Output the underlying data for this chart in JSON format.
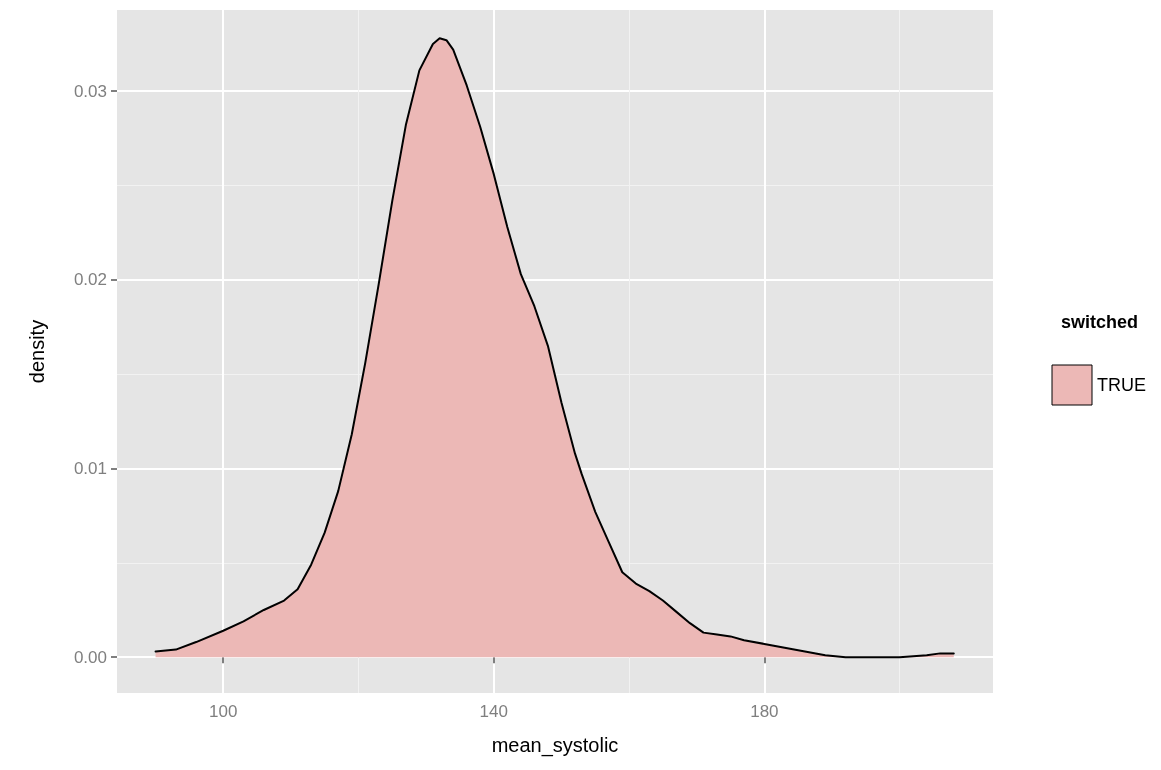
{
  "chart_data": {
    "type": "area",
    "xlabel": "mean_systolic",
    "ylabel": "density",
    "legend_title": "switched",
    "legend": "right",
    "grid": true,
    "marker": "none",
    "line_style": "solid",
    "xlim": [
      84.3,
      213.8
    ],
    "xticks": [
      100,
      140,
      180
    ],
    "ylim": [
      -0.0019,
      0.0343
    ],
    "yticks": [
      {
        "value": 0,
        "label": "0.00"
      },
      {
        "value": 0.01,
        "label": "0.01"
      },
      {
        "value": 0.02,
        "label": "0.02"
      },
      {
        "value": 0.03,
        "label": "0.03"
      }
    ],
    "series": [
      {
        "name": "TRUE",
        "color": "#ecb8b6",
        "x": [
          90,
          93,
          96,
          100,
          103,
          106,
          109,
          111,
          113,
          115,
          117,
          119,
          121,
          123,
          125,
          127,
          129,
          131,
          132,
          133,
          134,
          136,
          138,
          140,
          142,
          144,
          146,
          148,
          150,
          152,
          153,
          155,
          157,
          159,
          161,
          163,
          165,
          167,
          169,
          171,
          173,
          175,
          177,
          180,
          183,
          186,
          189,
          192,
          196,
          200,
          204,
          206,
          208
        ],
        "values": [
          0.0003,
          0.0004,
          0.0008,
          0.0014,
          0.0019,
          0.0025,
          0.003,
          0.0036,
          0.0049,
          0.0066,
          0.0088,
          0.0118,
          0.0156,
          0.0198,
          0.0242,
          0.0282,
          0.0311,
          0.0325,
          0.0328,
          0.0327,
          0.0322,
          0.0303,
          0.0281,
          0.0256,
          0.0228,
          0.0203,
          0.0186,
          0.0165,
          0.0135,
          0.0108,
          0.0097,
          0.0077,
          0.0061,
          0.0045,
          0.0039,
          0.0035,
          0.003,
          0.0024,
          0.0018,
          0.0013,
          0.0012,
          0.0011,
          0.0009,
          0.0007,
          0.0005,
          0.0003,
          0.0001,
          0.0,
          0.0,
          0.0,
          0.0001,
          0.0002,
          0.0002
        ]
      }
    ]
  }
}
